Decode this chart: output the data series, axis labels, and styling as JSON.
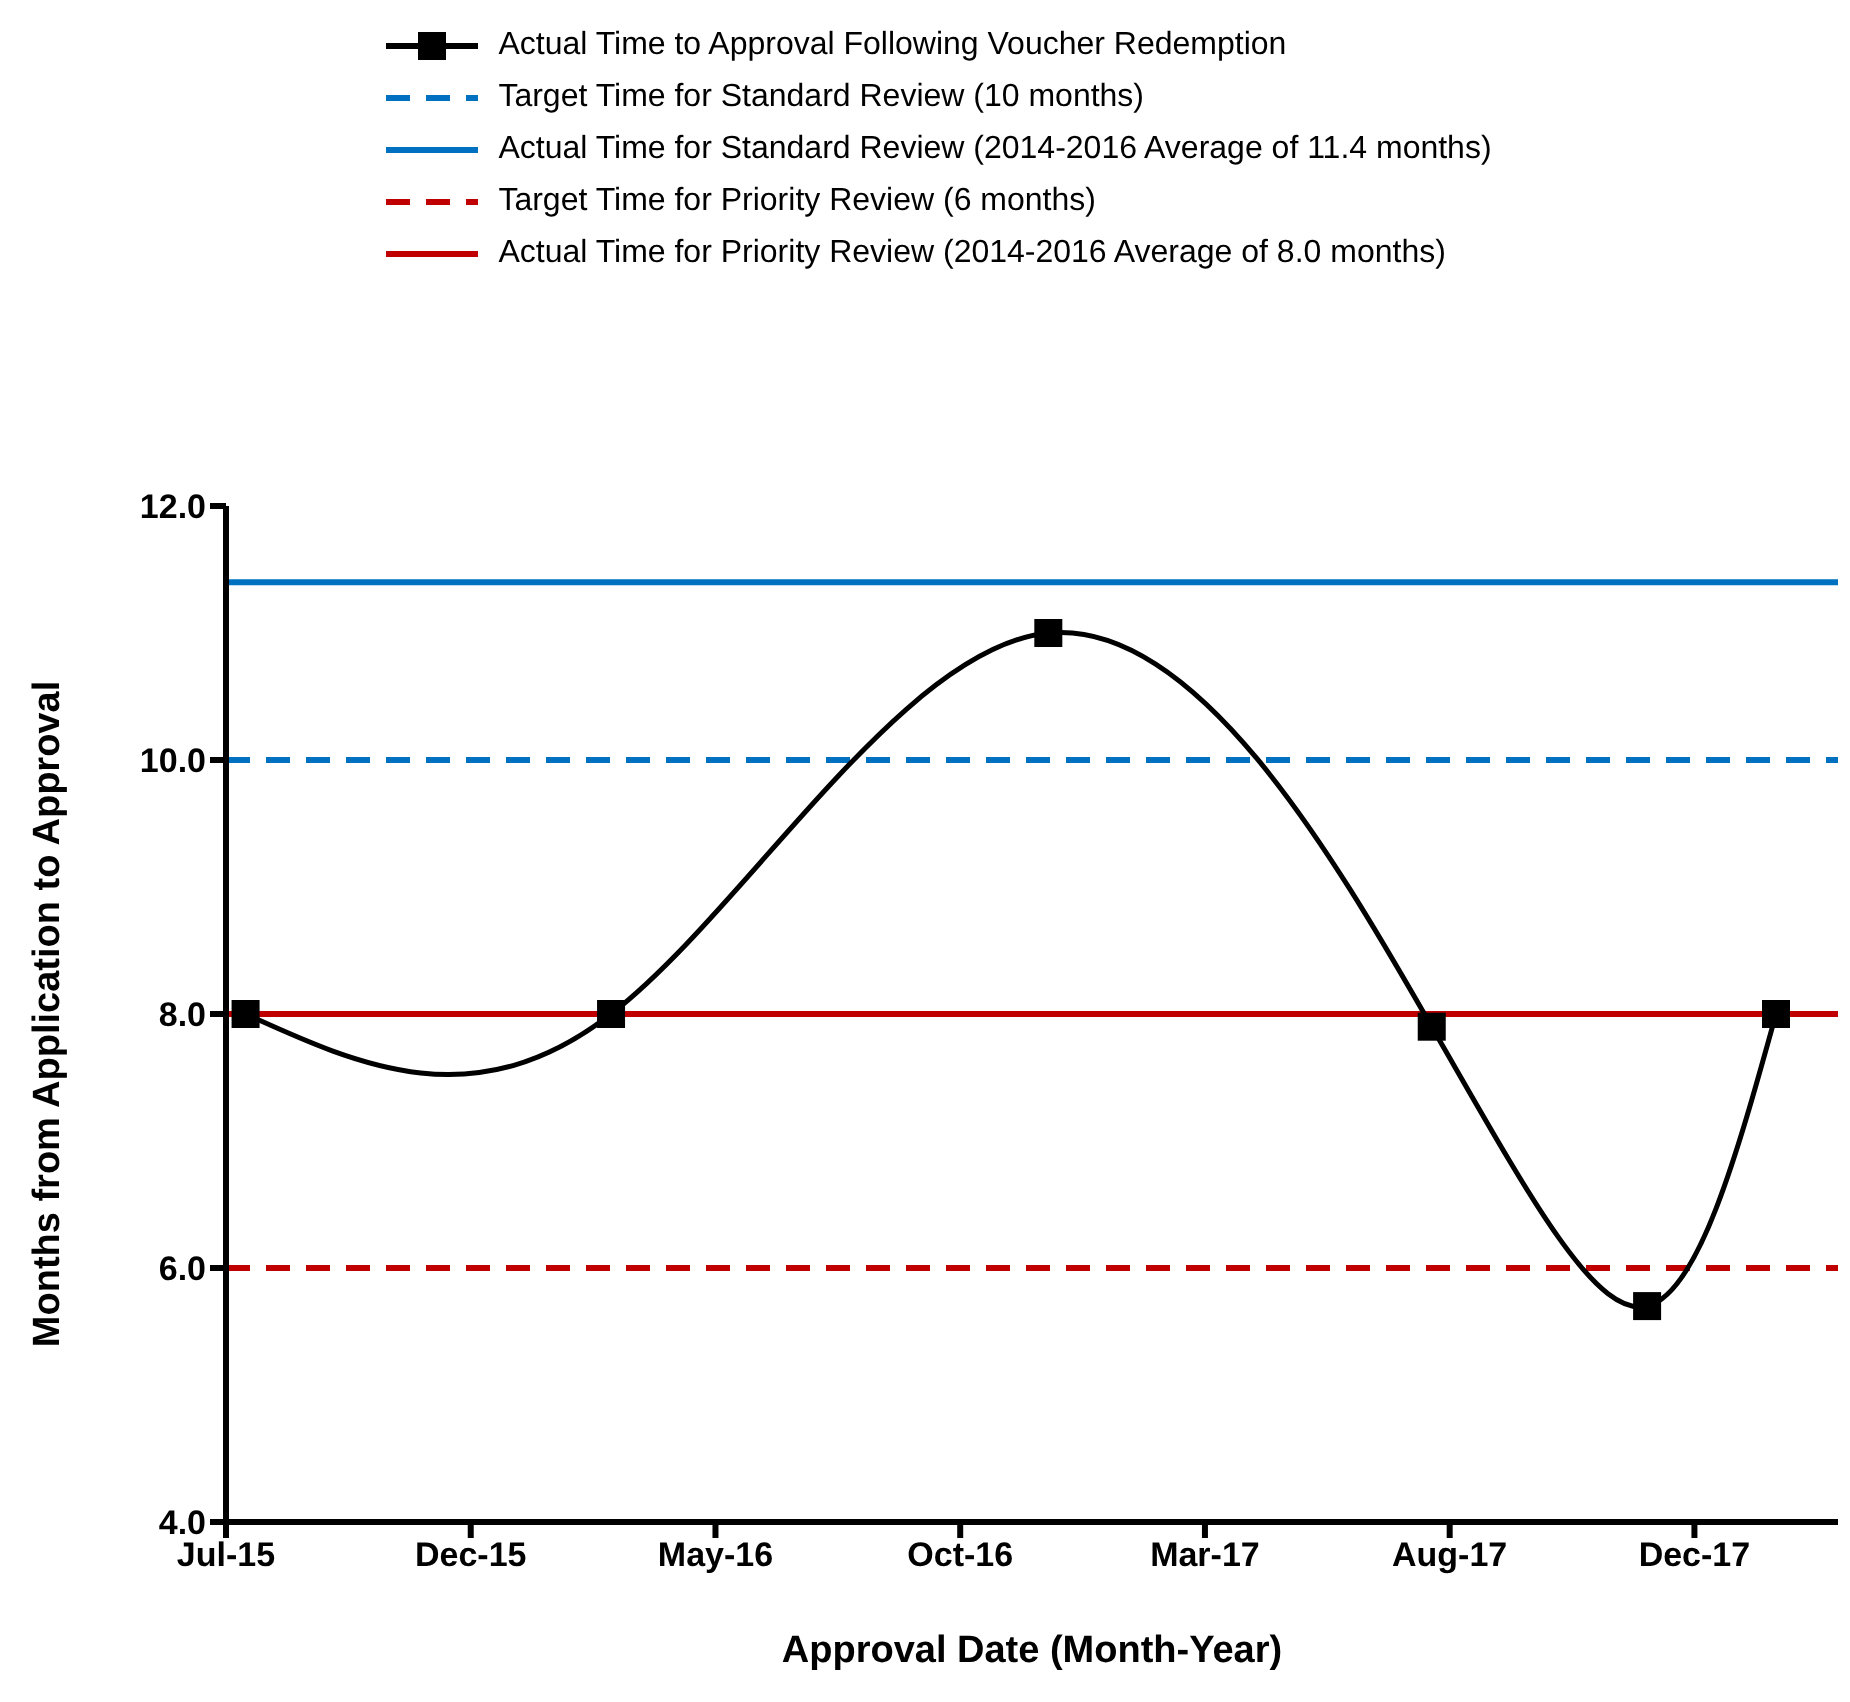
{
  "chart_data": {
    "type": "line",
    "xlabel": "Approval Date (Month-Year)",
    "ylabel": "Months from Application to Approval",
    "x": [
      "2015-07-27",
      "2016-03-07",
      "2016-11-30",
      "2017-07-23",
      "2017-12-02",
      "2018-02-19"
    ],
    "series": [
      {
        "name": "Actual Time to Approval Following Voucher Redemption",
        "color": "#000000",
        "values": [
          8.0,
          8.0,
          11.0,
          7.9,
          5.7,
          8.0
        ]
      }
    ],
    "marker": "square",
    "line_style": "solid",
    "legend": "top",
    "xlim": [
      "2015-07-15",
      "2018-03-29"
    ],
    "xticks": [
      {
        "value": "2015-07-15",
        "label": "Jul-15"
      },
      {
        "value": "2015-12-12",
        "label": "Dec-15"
      },
      {
        "value": "2016-05-10",
        "label": "May-16"
      },
      {
        "value": "2016-10-07",
        "label": "Oct-16"
      },
      {
        "value": "2017-03-06",
        "label": "Mar-17"
      },
      {
        "value": "2017-08-03",
        "label": "Aug-17"
      },
      {
        "value": "2017-12-31",
        "label": "Dec-17"
      }
    ],
    "ylim": [
      4,
      12
    ],
    "yticks": [
      {
        "value": 4,
        "label": "4.0"
      },
      {
        "value": 6,
        "label": "6.0"
      },
      {
        "value": 8,
        "label": "8.0"
      },
      {
        "value": 10,
        "label": "10.0"
      },
      {
        "value": 12,
        "label": "12.0"
      }
    ],
    "ref_lines": [
      {
        "axis": "y",
        "value": 10,
        "label": "Target Time for Standard Review (10 months)",
        "color": "#0070c0",
        "line_style": "dashed"
      },
      {
        "axis": "y",
        "value": 11.4,
        "label": "Actual Time for Standard Review (2014-2016 Average of 11.4 months)",
        "color": "#0070c0",
        "line_style": "solid"
      },
      {
        "axis": "y",
        "value": 6,
        "label": "Target Time for Priority Review (6 months)",
        "color": "#c00000",
        "line_style": "dashed"
      },
      {
        "axis": "y",
        "value": 8.0,
        "label": "Actual Time for Priority Review (2014-2016 Average of 8.0 months)",
        "color": "#c00000",
        "line_style": "solid"
      }
    ]
  }
}
